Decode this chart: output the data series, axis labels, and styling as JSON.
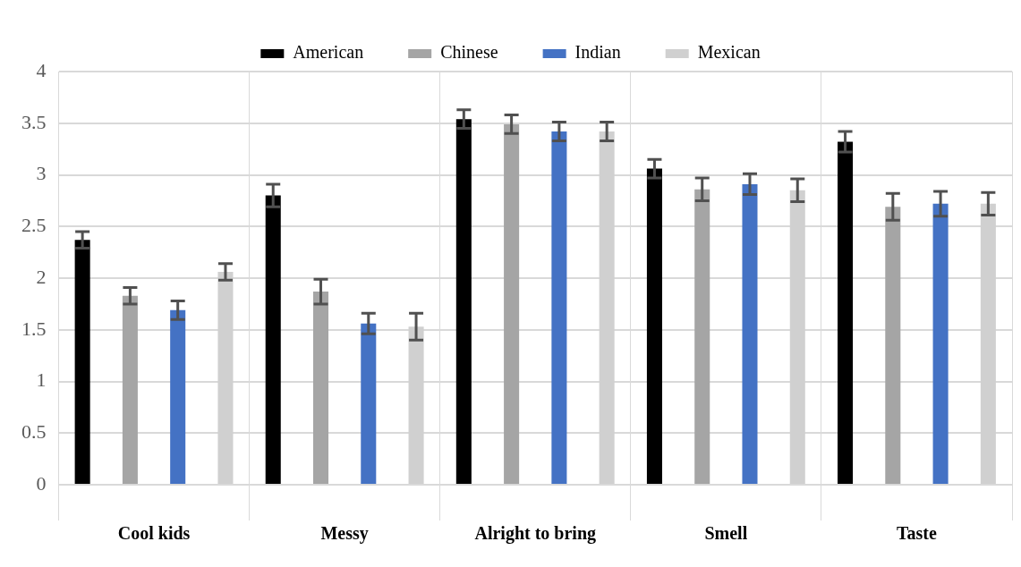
{
  "chart_data": {
    "type": "bar",
    "categories": [
      "Cool kids",
      "Messy",
      "Alright to bring",
      "Smell",
      "Taste"
    ],
    "series": [
      {
        "name": "American",
        "color": "#000000",
        "values": [
          2.37,
          2.8,
          3.54,
          3.06,
          3.32
        ],
        "errors": [
          0.08,
          0.11,
          0.09,
          0.09,
          0.1
        ]
      },
      {
        "name": "Chinese",
        "color": "#a5a5a5",
        "values": [
          1.83,
          1.87,
          3.49,
          2.86,
          2.69
        ],
        "errors": [
          0.08,
          0.12,
          0.09,
          0.11,
          0.13
        ]
      },
      {
        "name": "Indian",
        "color": "#4472c4",
        "values": [
          1.69,
          1.56,
          3.42,
          2.91,
          2.72
        ],
        "errors": [
          0.09,
          0.1,
          0.09,
          0.1,
          0.12
        ]
      },
      {
        "name": "Mexican",
        "color": "#d0d0d0",
        "values": [
          2.06,
          1.53,
          3.42,
          2.85,
          2.72
        ],
        "errors": [
          0.08,
          0.13,
          0.09,
          0.11,
          0.11
        ]
      }
    ],
    "ylim": [
      0,
      4
    ],
    "yticks": [
      0,
      0.5,
      1,
      1.5,
      2,
      2.5,
      3,
      3.5,
      4
    ],
    "grid": true,
    "legend": "top"
  }
}
